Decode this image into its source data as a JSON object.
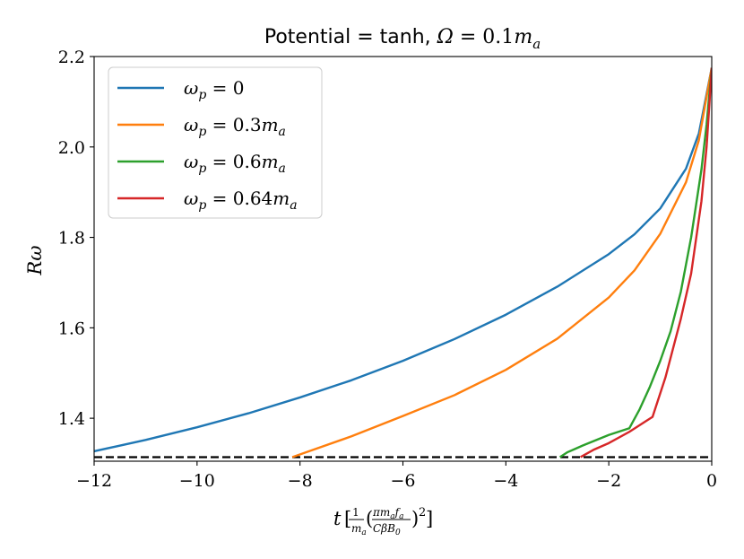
{
  "chart_data": {
    "type": "line",
    "title": "Potential = tanh, Ω = 0.1m_a",
    "title_parts": {
      "prefix": "Potential = tanh, ",
      "omega": "Ω",
      "eq": " = 0.1",
      "m": "m",
      "sub": "a"
    },
    "xlabel": "t [1/m_a (π m_a f_a / (C β B_0))^2]",
    "ylabel": "Rω",
    "xlim": [
      -12,
      0
    ],
    "ylim": [
      1.305,
      2.2
    ],
    "x_ticks": [
      -12,
      -10,
      -8,
      -6,
      -4,
      -2,
      0
    ],
    "x_tick_labels": [
      "−12",
      "−10",
      "−8",
      "−6",
      "−4",
      "−2",
      "0"
    ],
    "y_ticks": [
      1.4,
      1.6,
      1.8,
      2.0,
      2.2
    ],
    "y_tick_labels": [
      "1.4",
      "1.6",
      "1.8",
      "2.0",
      "2.2"
    ],
    "legend_position": "top-left",
    "reference_line": {
      "y": 1.314,
      "style": "dashed",
      "color": "#000000"
    },
    "series": [
      {
        "name": "ω_p = 0",
        "label_prefix": "ω",
        "label_sub": "p",
        "label_value": " = 0",
        "label_m": "",
        "label_msub": "",
        "color": "#1f77b4",
        "x": [
          -12,
          -11,
          -10,
          -9,
          -8,
          -7,
          -6,
          -5,
          -4,
          -3,
          -2,
          -1.5,
          -1,
          -0.5,
          -0.25,
          0
        ],
        "y": [
          1.327,
          1.352,
          1.38,
          1.411,
          1.446,
          1.484,
          1.527,
          1.575,
          1.629,
          1.691,
          1.763,
          1.807,
          1.864,
          1.952,
          2.03,
          2.175
        ]
      },
      {
        "name": "ω_p = 0.3m_a",
        "label_prefix": "ω",
        "label_sub": "p",
        "label_value": " = 0.3",
        "label_m": "m",
        "label_msub": "a",
        "color": "#ff7f0e",
        "x": [
          -8.15,
          -7,
          -6,
          -5,
          -4,
          -3,
          -2,
          -1.5,
          -1,
          -0.5,
          -0.25,
          0
        ],
        "y": [
          1.314,
          1.36,
          1.405,
          1.451,
          1.507,
          1.576,
          1.667,
          1.727,
          1.808,
          1.922,
          2.015,
          2.175
        ]
      },
      {
        "name": "ω_p = 0.6m_a",
        "label_prefix": "ω",
        "label_sub": "p",
        "label_value": " = 0.6",
        "label_m": "m",
        "label_msub": "a",
        "color": "#2ca02c",
        "x": [
          -2.95,
          -2.8,
          -2.5,
          -2.0,
          -1.6,
          -1.4,
          -1.2,
          -1.0,
          -0.8,
          -0.6,
          -0.4,
          -0.2,
          -0.1,
          0
        ],
        "y": [
          1.314,
          1.325,
          1.34,
          1.363,
          1.378,
          1.42,
          1.47,
          1.527,
          1.592,
          1.68,
          1.8,
          1.95,
          2.05,
          2.175
        ]
      },
      {
        "name": "ω_p = 0.64m_a",
        "label_prefix": "ω",
        "label_sub": "p",
        "label_value": " = 0.64",
        "label_m": "m",
        "label_msub": "a",
        "color": "#d62728",
        "x": [
          -2.55,
          -2.3,
          -2.0,
          -1.6,
          -1.3,
          -1.15,
          -0.9,
          -0.6,
          -0.4,
          -0.2,
          -0.1,
          0
        ],
        "y": [
          1.314,
          1.33,
          1.345,
          1.37,
          1.392,
          1.403,
          1.49,
          1.62,
          1.72,
          1.88,
          2.0,
          2.175
        ]
      }
    ]
  }
}
